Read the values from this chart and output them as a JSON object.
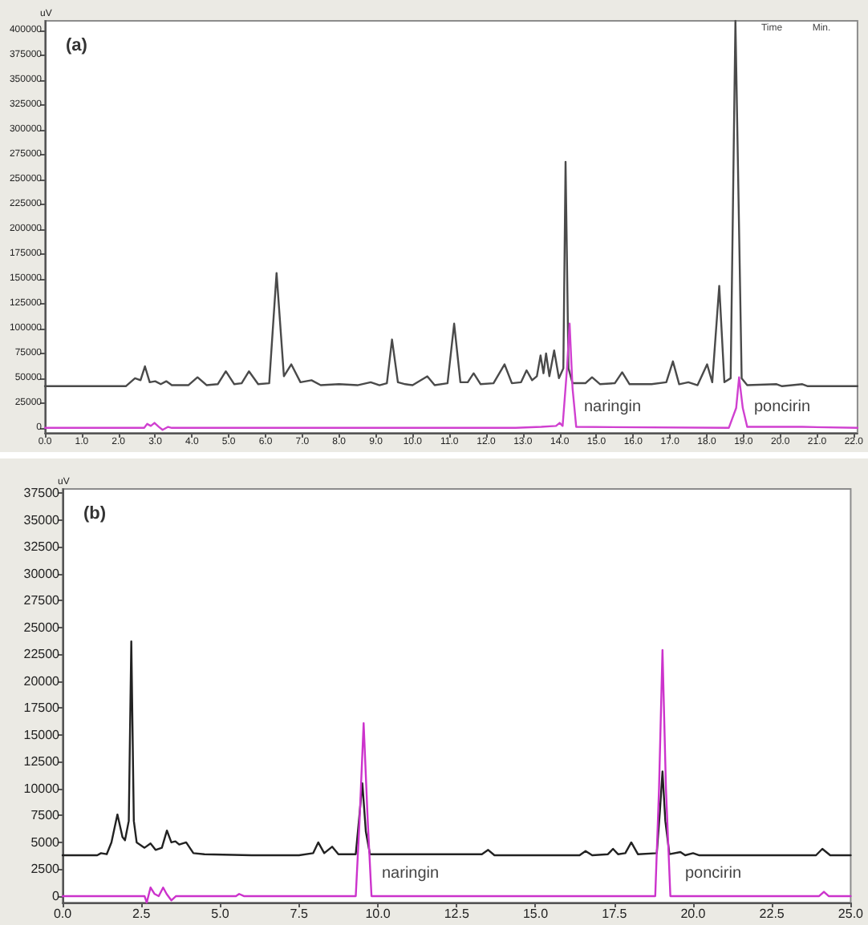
{
  "chart_data": [
    {
      "type": "line",
      "title": "(a)",
      "ylabel": "uV",
      "annotations": [
        "Time",
        "Min.",
        "naringin",
        "poncirin"
      ],
      "xlim": [
        0,
        22.1
      ],
      "xticks": [
        {
          "value": 0,
          "label": "0.0"
        },
        {
          "value": 1,
          "label": "1.0"
        },
        {
          "value": 2,
          "label": "2.0"
        },
        {
          "value": 3,
          "label": "3.0"
        },
        {
          "value": 4,
          "label": "4.0"
        },
        {
          "value": 5,
          "label": "5.0"
        },
        {
          "value": 6,
          "label": "6.0"
        },
        {
          "value": 7,
          "label": "7.0"
        },
        {
          "value": 8,
          "label": "8.0"
        },
        {
          "value": 9,
          "label": "9.0"
        },
        {
          "value": 10,
          "label": "10.0"
        },
        {
          "value": 11,
          "label": "11.0"
        },
        {
          "value": 12,
          "label": "12.0"
        },
        {
          "value": 13,
          "label": "13.0"
        },
        {
          "value": 14,
          "label": "14.0"
        },
        {
          "value": 15,
          "label": "15.0"
        },
        {
          "value": 16,
          "label": "16.0"
        },
        {
          "value": 17,
          "label": "17.0"
        },
        {
          "value": 18,
          "label": "18.0"
        },
        {
          "value": 19,
          "label": "19.0"
        },
        {
          "value": 20,
          "label": "20.0"
        },
        {
          "value": 21,
          "label": "21.0"
        },
        {
          "value": 22,
          "label": "22.0"
        }
      ],
      "ylim": [
        -5000,
        410000
      ],
      "yticks": [
        0,
        25000,
        50000,
        75000,
        100000,
        125000,
        150000,
        175000,
        200000,
        225000,
        250000,
        275000,
        300000,
        325000,
        350000,
        375000,
        400000
      ],
      "grid": false,
      "marker": "none",
      "line_style": "solid",
      "series": [
        {
          "color": "#4a4a4a",
          "x": [
            0,
            2.2,
            2.45,
            2.6,
            2.72,
            2.85,
            3.0,
            3.15,
            3.3,
            3.45,
            3.9,
            4.15,
            4.4,
            4.7,
            4.92,
            5.15,
            5.35,
            5.55,
            5.8,
            6.1,
            6.3,
            6.5,
            6.7,
            6.95,
            7.25,
            7.5,
            8.0,
            8.5,
            8.86,
            9.1,
            9.3,
            9.44,
            9.6,
            9.8,
            10.0,
            10.4,
            10.6,
            10.95,
            11.13,
            11.3,
            11.5,
            11.66,
            11.85,
            12.2,
            12.5,
            12.7,
            12.95,
            13.1,
            13.25,
            13.38,
            13.48,
            13.56,
            13.63,
            13.72,
            13.85,
            13.98,
            14.1,
            14.16,
            14.24,
            14.35,
            14.7,
            14.88,
            15.1,
            15.5,
            15.7,
            15.9,
            16.5,
            16.9,
            17.08,
            17.25,
            17.5,
            17.75,
            18.01,
            18.15,
            18.34,
            18.48,
            18.65,
            18.78,
            18.95,
            19.1,
            19.9,
            20.05,
            20.6,
            20.75,
            22.1
          ],
          "values": [
            42000,
            42000,
            50000,
            48000,
            62000,
            46000,
            47000,
            44000,
            47000,
            43000,
            43000,
            51000,
            43000,
            44000,
            57000,
            44000,
            45000,
            57000,
            44000,
            45000,
            156000,
            52000,
            64000,
            46000,
            48000,
            43000,
            44000,
            43000,
            46000,
            43000,
            45000,
            89000,
            46000,
            44000,
            43000,
            52000,
            43000,
            45000,
            105000,
            46000,
            46000,
            55000,
            44000,
            45000,
            64000,
            45000,
            46000,
            58000,
            48000,
            52000,
            73000,
            55000,
            75000,
            52000,
            78000,
            50000,
            60000,
            268000,
            60000,
            45000,
            45000,
            51000,
            44000,
            45000,
            56000,
            44000,
            44000,
            46000,
            67000,
            44000,
            46000,
            43000,
            64000,
            46000,
            143000,
            46000,
            50000,
            410000,
            50000,
            43000,
            44000,
            42000,
            44000,
            42000,
            42000
          ]
        },
        {
          "color": "#d040d0",
          "x": [
            0,
            2.7,
            2.78,
            2.88,
            2.98,
            3.1,
            3.2,
            3.35,
            3.45,
            12.8,
            13.5,
            13.9,
            14.0,
            14.08,
            14.2,
            14.27,
            14.35,
            14.45,
            18.6,
            18.8,
            18.88,
            18.98,
            19.1,
            20.6,
            22.1
          ],
          "values": [
            0,
            0,
            4000,
            2000,
            5000,
            1000,
            -2000,
            1000,
            0,
            0,
            1000,
            2000,
            5000,
            2000,
            60000,
            105000,
            40000,
            1000,
            0,
            20000,
            51000,
            20000,
            1000,
            1000,
            0
          ]
        }
      ]
    },
    {
      "type": "line",
      "title": "(b)",
      "ylabel": "uV",
      "annotations": [
        "naringin",
        "poncirin"
      ],
      "xlim": [
        0,
        25
      ],
      "xticks": [
        {
          "value": 0,
          "label": "0.0"
        },
        2.5,
        {
          "value": 5,
          "label": "5.0"
        },
        7.5,
        {
          "value": 10,
          "label": "10.0"
        },
        12.5,
        {
          "value": 15,
          "label": "15.0"
        },
        17.5,
        {
          "value": 20,
          "label": "20.0"
        },
        22.5,
        {
          "value": 25,
          "label": "25.0"
        }
      ],
      "ylim": [
        -600,
        37900
      ],
      "yticks": [
        0,
        2500,
        5000,
        7500,
        10000,
        12500,
        15000,
        17500,
        20000,
        22500,
        25000,
        27500,
        30000,
        32500,
        35000,
        37500
      ],
      "grid": false,
      "marker": "none",
      "line_style": "solid",
      "series": [
        {
          "color": "#222222",
          "x": [
            0,
            1.1,
            1.22,
            1.4,
            1.55,
            1.74,
            1.9,
            1.98,
            2.1,
            2.18,
            2.26,
            2.35,
            2.6,
            2.79,
            2.95,
            3.15,
            3.31,
            3.45,
            3.58,
            3.7,
            3.92,
            4.15,
            4.5,
            6.0,
            7.5,
            7.95,
            8.11,
            8.3,
            8.55,
            8.75,
            9.3,
            9.4,
            9.51,
            9.62,
            9.75,
            13.3,
            13.5,
            13.7,
            16.4,
            16.59,
            16.8,
            17.3,
            17.46,
            17.62,
            17.85,
            18.04,
            18.25,
            18.85,
            18.95,
            19.03,
            19.12,
            19.25,
            19.6,
            19.75,
            20.0,
            20.2,
            23.9,
            24.1,
            24.35,
            25
          ],
          "values": [
            3800,
            3800,
            4000,
            3900,
            5000,
            7600,
            5500,
            5200,
            7000,
            23700,
            7000,
            5000,
            4500,
            4900,
            4300,
            4500,
            6100,
            5000,
            5100,
            4800,
            5000,
            4000,
            3900,
            3800,
            3800,
            4000,
            5000,
            4000,
            4600,
            3900,
            3900,
            7000,
            10500,
            6000,
            3900,
            3900,
            4300,
            3800,
            3800,
            4200,
            3800,
            3900,
            4400,
            3900,
            4000,
            5000,
            3900,
            4000,
            8000,
            11600,
            7000,
            3900,
            4100,
            3800,
            4000,
            3800,
            3800,
            4400,
            3800,
            3800
          ]
        },
        {
          "color": "#cc33cc",
          "x": [
            0,
            2.6,
            2.67,
            2.79,
            2.92,
            3.05,
            3.19,
            3.3,
            3.45,
            3.6,
            5.5,
            5.6,
            5.75,
            9.3,
            9.42,
            9.55,
            9.68,
            9.8,
            18.8,
            18.92,
            19.03,
            19.14,
            19.28,
            24.0,
            24.15,
            24.3,
            25
          ],
          "values": [
            0,
            0,
            -600,
            800,
            200,
            0,
            800,
            200,
            -400,
            0,
            0,
            200,
            0,
            0,
            7000,
            16100,
            7000,
            0,
            0,
            10000,
            22900,
            10000,
            0,
            0,
            400,
            0,
            0
          ]
        }
      ]
    }
  ]
}
